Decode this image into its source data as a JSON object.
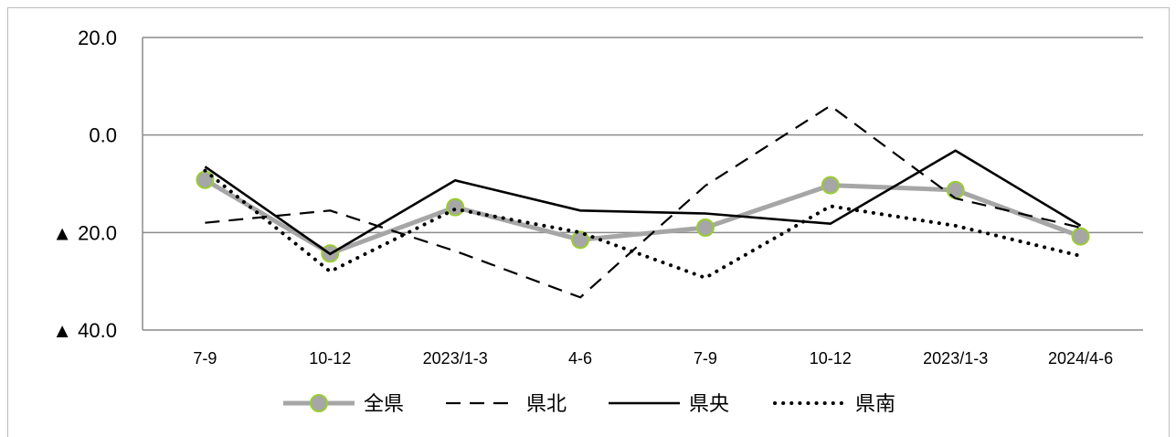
{
  "chart_data": {
    "type": "line",
    "categories": [
      "7-9",
      "10-12",
      "2023/1-3",
      "4-6",
      "7-9",
      "10-12",
      "2023/1-3",
      "2024/4-6"
    ],
    "ylim": [
      -40,
      20
    ],
    "y_ticks": [
      {
        "value": 20,
        "label": "20.0"
      },
      {
        "value": 0,
        "label": "0.0"
      },
      {
        "value": -20,
        "label": "▲ 20.0"
      },
      {
        "value": -40,
        "label": "▲ 40.0"
      }
    ],
    "grid": true,
    "legend_position": "bottom",
    "series": [
      {
        "name": "全県",
        "style": "gray-marker",
        "color": "#a6a6a6",
        "marker_edge": "#9acd32",
        "values": [
          -9.2,
          -24.3,
          -14.8,
          -21.5,
          -19.0,
          -10.3,
          -11.3,
          -20.8
        ]
      },
      {
        "name": "県北",
        "style": "dashed",
        "color": "#000000",
        "values": [
          -18.0,
          -15.5,
          -23.8,
          -33.3,
          -10.4,
          6.0,
          -13.0,
          -19.0
        ]
      },
      {
        "name": "県央",
        "style": "solid",
        "color": "#000000",
        "values": [
          -6.5,
          -24.4,
          -9.3,
          -15.5,
          -16.1,
          -18.2,
          -3.2,
          -18.6
        ]
      },
      {
        "name": "県南",
        "style": "dotted",
        "color": "#000000",
        "values": [
          -7.3,
          -28.0,
          -15.2,
          -20.0,
          -29.3,
          -14.6,
          -18.6,
          -24.8
        ]
      }
    ]
  }
}
